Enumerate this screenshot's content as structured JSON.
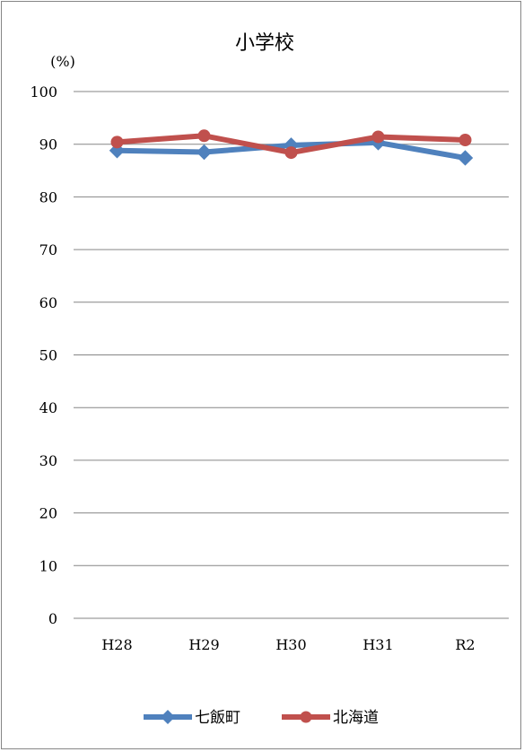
{
  "chart_data": {
    "type": "line",
    "title": "小学校",
    "ylabel": "(%)",
    "xlabel": "",
    "categories": [
      "H28",
      "H29",
      "H30",
      "H31",
      "R2"
    ],
    "ylim": [
      0,
      100
    ],
    "yticks": [
      0,
      10,
      20,
      30,
      40,
      50,
      60,
      70,
      80,
      90,
      100
    ],
    "grid": true,
    "legend": "bottom",
    "series": [
      {
        "name": "七飯町",
        "values": [
          88.8,
          88.5,
          89.8,
          90.3,
          87.4
        ],
        "color": "#4F81BD",
        "marker": "diamond"
      },
      {
        "name": "北海道",
        "values": [
          90.4,
          91.6,
          88.4,
          91.4,
          90.8
        ],
        "color": "#C0504D",
        "marker": "circle"
      }
    ]
  }
}
